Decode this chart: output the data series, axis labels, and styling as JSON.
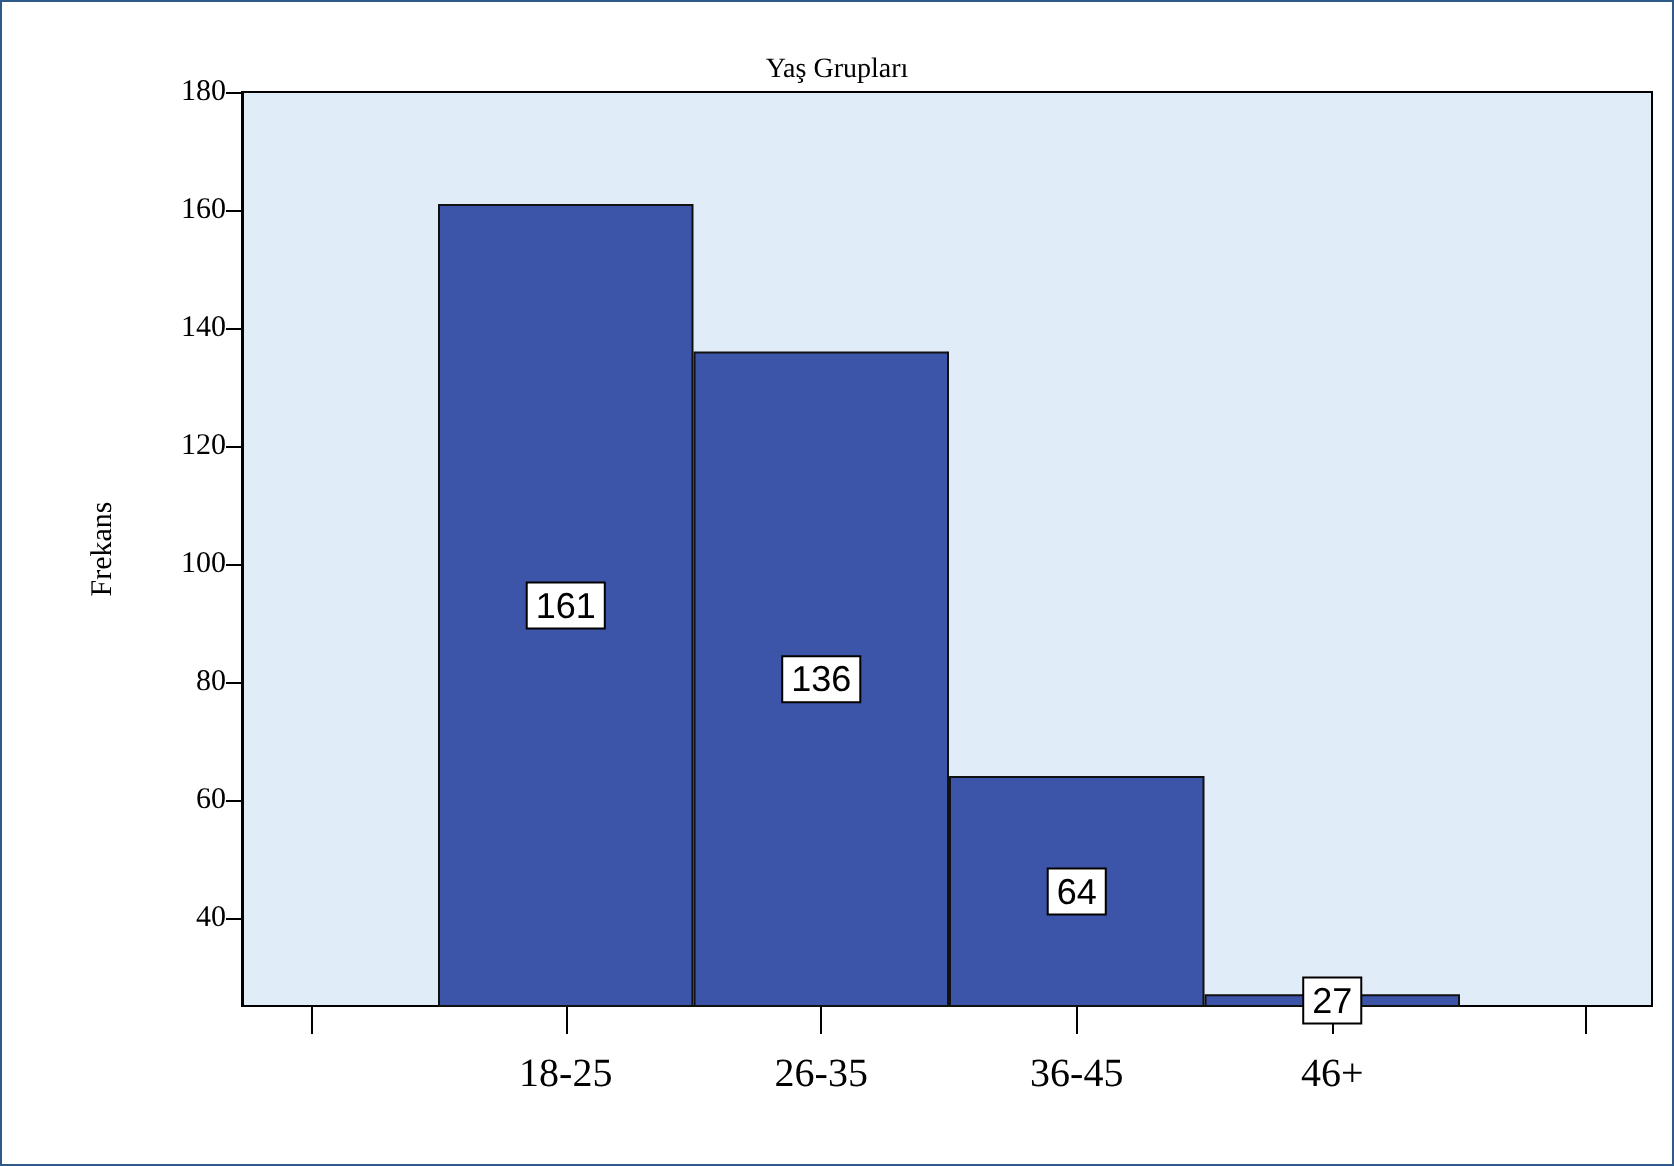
{
  "chart_data": {
    "type": "bar",
    "title": "Yaş Grupları",
    "ylabel": "Frekans",
    "categories": [
      "18-25",
      "26-35",
      "36-45",
      "46+"
    ],
    "values": [
      161,
      136,
      64,
      27
    ],
    "color": "#3d55a8",
    "ylim": [
      25,
      180
    ],
    "yticks": [
      40,
      60,
      80,
      100,
      120,
      140,
      160,
      180
    ],
    "data_labels": true
  }
}
